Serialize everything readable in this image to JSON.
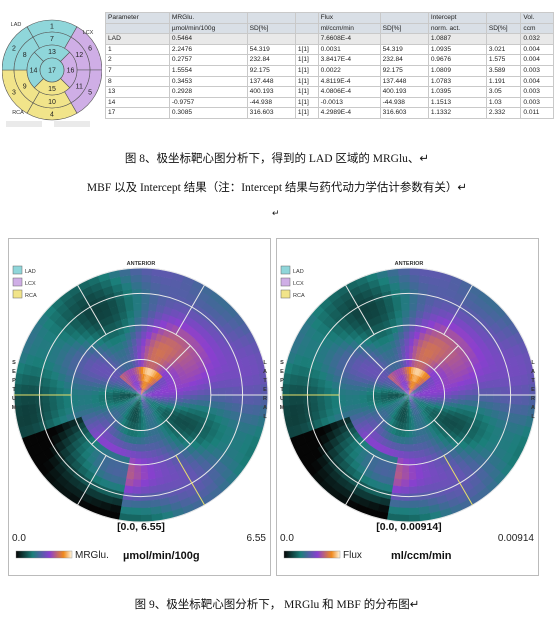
{
  "thumbnail": {
    "territories": [
      "LAD",
      "LCX",
      "RCA"
    ],
    "rings": [
      [
        1,
        6,
        5,
        4,
        3,
        2
      ],
      [
        7,
        12,
        11,
        10,
        9,
        8
      ],
      [
        13,
        16,
        15,
        14
      ],
      [
        17
      ]
    ]
  },
  "table": {
    "header": [
      [
        "Parameter",
        "MRGlu.",
        null,
        null,
        "Flux",
        null,
        "Intercept",
        null,
        "Vol."
      ],
      [
        null,
        "µmol/min/100g",
        "SD[%]",
        null,
        "ml/ccm/min",
        "SD[%]",
        "norm. act.",
        "SD[%]",
        "ccm"
      ]
    ],
    "rows": [
      [
        "LAD",
        "0.5464",
        null,
        null,
        "7.6608E-4",
        null,
        "1.0887",
        null,
        "0.032"
      ],
      [
        "1",
        "2.2476",
        "54.319",
        "1[1]",
        "0.0031",
        "54.319",
        "1.0935",
        "3.021",
        "0.004"
      ],
      [
        "2",
        "0.2757",
        "232.84",
        "1[1]",
        "3.8417E-4",
        "232.84",
        "0.9676",
        "1.575",
        "0.004"
      ],
      [
        "7",
        "1.5554",
        "92.175",
        "1[1]",
        "0.0022",
        "92.175",
        "1.0809",
        "3.589",
        "0.003"
      ],
      [
        "8",
        "0.3453",
        "137.448",
        "1[1]",
        "4.8119E-4",
        "137.448",
        "1.0783",
        "1.191",
        "0.004"
      ],
      [
        "13",
        "0.2928",
        "400.193",
        "1[1]",
        "4.0806E-4",
        "400.193",
        "1.0395",
        "3.05",
        "0.003"
      ],
      [
        "14",
        "-0.9757",
        "-44.938",
        "1[1]",
        "-0.0013",
        "-44.938",
        "1.1513",
        "1.03",
        "0.003"
      ],
      [
        "17",
        "0.3085",
        "316.603",
        "1[1]",
        "4.2989E-4",
        "316.603",
        "1.1332",
        "2.332",
        "0.011"
      ]
    ]
  },
  "caption_8": [
    "图 8、极坐标靶心图分析下，得到的 LAD 区域的 MRGlu、↵",
    "MBF 以及 Intercept 结果（注：Intercept 结果与药代动力学估计参数有关）↵",
    "↵"
  ],
  "maps": [
    {
      "anterior": "ANTERIOR",
      "septum": "SEPTUM",
      "lateral": "LATERAL",
      "legend": [
        "LAD",
        "LCX",
        "RCA"
      ],
      "range": "[0.0, 6.55]",
      "min": "0.0",
      "max": "6.55",
      "name": "MRGlu.",
      "unit": "µmol/min/100g"
    },
    {
      "anterior": "ANTERIOR",
      "septum": "SEPTUM",
      "lateral": "LATERAL",
      "legend": [
        "LAD",
        "LCX",
        "RCA"
      ],
      "range": "[0.0, 0.00914]",
      "min": "0.0",
      "max": "0.00914",
      "name": "Flux",
      "unit": "ml/ccm/min"
    }
  ],
  "caption_9": "图 9、极坐标靶心图分析下，  MRGlu 和 MBF 的分布图↵"
}
